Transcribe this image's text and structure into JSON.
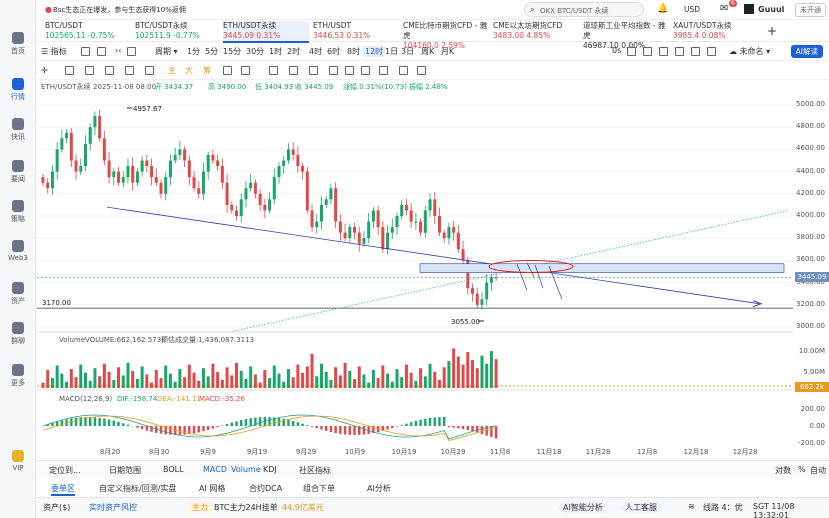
{
  "topbar": {
    "news": "Bsc生态正在爆发，参与生态获得10%返佣",
    "search_placeholder": "OKX BTC/USDT 永续",
    "currency": "USD",
    "user": "Guuul",
    "login": "未开通",
    "badge": "6"
  },
  "tickers": [
    {
      "name": "BTC/USDT",
      "price": "102565.11",
      "change": "-0.75%",
      "dir": "down"
    },
    {
      "name": "BTC/USDT永续",
      "price": "102511.9",
      "change": "-0.77%",
      "dir": "down"
    },
    {
      "name": "ETH/USDT永续",
      "price": "3445.09",
      "change": "0.31%",
      "dir": "up"
    },
    {
      "name": "ETH/USDT",
      "price": "3446.53",
      "change": "0.31%",
      "dir": "up"
    },
    {
      "name": "CME比特币期货CFD - 雅虎",
      "price": "104160.0",
      "change": "2.59%",
      "dir": "up"
    },
    {
      "name": "CME以太坊期货CFD",
      "price": "3483.00",
      "change": "4.85%",
      "dir": "up"
    },
    {
      "name": "道琼斯工业平均指数 - 雅虎",
      "price": "46987.10",
      "change": "0.00%",
      "dir": "flat"
    },
    {
      "name": "XAUT/USDT永续",
      "price": "3985.4",
      "change": "0.08%",
      "dir": "up"
    }
  ],
  "nav": [
    {
      "label": "首页"
    },
    {
      "label": "行情"
    },
    {
      "label": "快讯"
    },
    {
      "label": "要闻"
    },
    {
      "label": "策略"
    },
    {
      "label": "Web3"
    },
    {
      "label": "资产"
    },
    {
      "label": "群聊"
    },
    {
      "label": "更多"
    },
    {
      "label": "VIP"
    }
  ],
  "toolbar": {
    "indicator": "指标",
    "period": "周期",
    "intervals": [
      "1分",
      "5分",
      "15分",
      "30分",
      "1时",
      "2时",
      "4时",
      "6时",
      "8时",
      "12时",
      "1日",
      "3日",
      "周K",
      "月K"
    ],
    "selected_interval": "12时",
    "zero_s": "0s",
    "unnamed": "未命名",
    "ai": "AI解读",
    "draw_tools": [
      "主",
      "大",
      "筹"
    ]
  },
  "chart_info": {
    "symbol": "ETH/USDT永续",
    "time": "2025-11-08 08:00",
    "open": "开 3434.37",
    "high": "高 3490.00",
    "low": "低 3404.93",
    "close": "收 3445.09",
    "change": "涨幅 0.31%(10.73)",
    "amp": "振幅 2.48%",
    "high_mark": "4957.67",
    "low_mark": "3055.00",
    "support": "3170.00",
    "last": "3445.09"
  },
  "y_axis": [
    "5000.00",
    "4800.00",
    "4600.00",
    "4400.00",
    "4200.00",
    "4000.00",
    "3800.00",
    "3600.00",
    "3400.00",
    "3200.00",
    "3000.00"
  ],
  "x_axis": [
    "8月20",
    "8月30",
    "9月9",
    "9月19",
    "9月29",
    "10月9",
    "10月19",
    "10月29",
    "11月8",
    "11月18",
    "11月28",
    "12月8",
    "12月18",
    "12月28"
  ],
  "volume": {
    "label": "Volume",
    "value": "VOLUME:662,162.5730",
    "est": "预估成交量:1,436,087.3113",
    "axis": [
      "10.00M",
      "5.00M"
    ],
    "last": "662.2k"
  },
  "macd": {
    "label": "MACD(12,26,9)",
    "dif": "DIF:-158.74",
    "dea": "DEA:-141.11",
    "macd": "MACD:-35.26",
    "axis": [
      "200.00",
      "0.00",
      "-200.00"
    ]
  },
  "bottom": {
    "tabs1": [
      "定位到...",
      "日期范围",
      "BOLL",
      "MACD",
      "Volume",
      "KDJ",
      "社区指标"
    ],
    "right1": [
      "对数",
      "%",
      "自动"
    ],
    "tabs2": [
      "委单区",
      "自定义指标/回测/实盘",
      "AI 网格",
      "合约DCA",
      "组合下单",
      "AI分析"
    ],
    "status": {
      "assets": "资产($)",
      "risk": "实时资产风控",
      "main": "主力",
      "feed": "BTC主力24H挂单",
      "feed_val": "44.9亿美元",
      "ai_smart": "AI智能分析",
      "service": "人工客服",
      "line": "线路 4：优",
      "time": "SGT 11/08 13:32:01"
    }
  },
  "colors": {
    "up": "#16a868",
    "down": "#e34848",
    "accent": "#1b5fd9"
  },
  "chart_data": {
    "type": "candlestick",
    "symbol": "ETH/USDT永续",
    "x_range": [
      "8月20",
      "12月28"
    ],
    "ylim": [
      3000,
      5000
    ],
    "annotations": {
      "high": 4957.67,
      "low": 3055.0,
      "support_line": 3170.0,
      "last": 3445.09
    },
    "closes": [
      4300,
      4250,
      4400,
      4600,
      4700,
      4750,
      4500,
      4400,
      4450,
      4650,
      4800,
      4900,
      4700,
      4500,
      4350,
      4400,
      4300,
      4350,
      4450,
      4300,
      4400,
      4500,
      4450,
      4350,
      4300,
      4200,
      4350,
      4500,
      4550,
      4600,
      4500,
      4350,
      4250,
      4200,
      4400,
      4550,
      4500,
      4450,
      4300,
      4100,
      4050,
      4000,
      4150,
      4250,
      4300,
      4200,
      4100,
      4050,
      4150,
      4350,
      4450,
      4500,
      4600,
      4550,
      4450,
      4400,
      4050,
      3900,
      3950,
      4100,
      4150,
      4250,
      3950,
      3850,
      3800,
      3900,
      3850,
      3750,
      3800,
      3950,
      4050,
      3900,
      3700,
      3850,
      3900,
      4000,
      4100,
      4050,
      3950,
      3950,
      3850,
      4050,
      4150,
      4000,
      3850,
      3800,
      3900,
      3850,
      3700,
      3600,
      3350,
      3300,
      3200,
      3250,
      3400,
      3450,
      3445
    ]
  }
}
